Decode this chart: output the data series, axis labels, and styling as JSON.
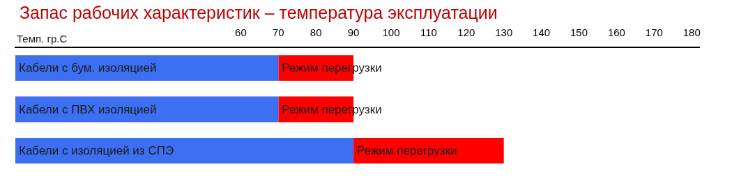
{
  "chart_data": {
    "type": "bar",
    "orientation": "horizontal",
    "stacked": true,
    "title": "Запас рабочих характеристик – температура эксплуатации",
    "xlabel": "Темп. гр.С",
    "categories": [
      "Кабели с бум. изоляцией",
      "Кабели с ПВХ изоляцией",
      "Кабели с изоляцией из СПЭ"
    ],
    "series": [
      {
        "color": "#3d6ff2",
        "values": [
          70,
          70,
          90
        ]
      },
      {
        "name": "Режим перегрузки",
        "color": "#ff0000",
        "values": [
          20,
          20,
          40
        ]
      }
    ],
    "xlim": [
      0,
      182
    ],
    "xticks": [
      60,
      70,
      80,
      90,
      100,
      110,
      120,
      130,
      140,
      150,
      160,
      170,
      180
    ],
    "grid": false,
    "legend": false
  }
}
